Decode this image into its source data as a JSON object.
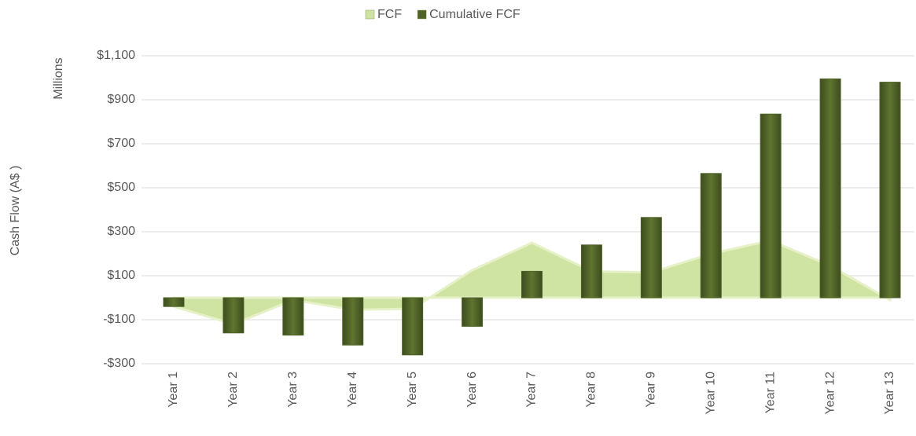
{
  "chart_data": {
    "type": "bar_area",
    "y_axis_label": "Cash Flow (A$ )",
    "y_axis_unit": "Millions",
    "categories": [
      "Year 1",
      "Year 2",
      "Year 3",
      "Year 4",
      "Year 5",
      "Year 6",
      "Year 7",
      "Year 8",
      "Year 9",
      "Year 10",
      "Year 11",
      "Year 12",
      "Year 13"
    ],
    "series": [
      {
        "name": "FCF",
        "kind": "area",
        "color": "#cfe3a3",
        "values": [
          -40,
          -120,
          -10,
          -55,
          -50,
          125,
          250,
          120,
          115,
          200,
          260,
          145,
          -10
        ]
      },
      {
        "name": "Cumulative FCF",
        "kind": "bar",
        "color": "#4f6228",
        "values": [
          -40,
          -160,
          -170,
          -215,
          -260,
          -130,
          120,
          240,
          365,
          565,
          835,
          995,
          980
        ]
      }
    ],
    "ylim": [
      -300,
      1100
    ],
    "yticks": [
      {
        "value": -300,
        "label": "-$300"
      },
      {
        "value": -100,
        "label": "-$100"
      },
      {
        "value": 100,
        "label": "$100"
      },
      {
        "value": 300,
        "label": "$300"
      },
      {
        "value": 500,
        "label": "$500"
      },
      {
        "value": 700,
        "label": "$700"
      },
      {
        "value": 900,
        "label": "$900"
      },
      {
        "value": 1100,
        "label": "$1,100"
      }
    ],
    "grid": true,
    "legend": "top"
  }
}
